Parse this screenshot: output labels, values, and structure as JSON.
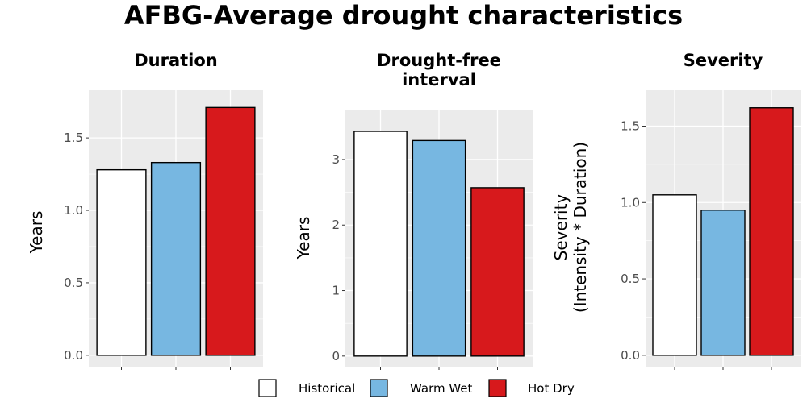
{
  "title": "AFBG-Average drought characteristics",
  "chart_data": [
    {
      "type": "bar",
      "title_lines": [
        "Duration"
      ],
      "ylabel_lines": [
        "Years"
      ],
      "categories": [
        "Historical",
        "Warm Wet",
        "Hot Dry"
      ],
      "values": [
        1.28,
        1.33,
        1.71
      ],
      "ylim": [
        0,
        1.75
      ],
      "yticks": [
        0.0,
        0.5,
        1.0,
        1.5
      ],
      "ytick_labels": [
        "0.0",
        "0.5",
        "1.0",
        "1.5"
      ],
      "grid": true
    },
    {
      "type": "bar",
      "title_lines": [
        "Drought-free",
        "interval"
      ],
      "ylabel_lines": [
        "Years"
      ],
      "categories": [
        "Historical",
        "Warm Wet",
        "Hot Dry"
      ],
      "values": [
        3.43,
        3.29,
        2.57
      ],
      "ylim": [
        0,
        3.6
      ],
      "yticks": [
        0,
        1,
        2,
        3
      ],
      "ytick_labels": [
        "0",
        "1",
        "2",
        "3"
      ],
      "grid": true
    },
    {
      "type": "bar",
      "title_lines": [
        "Severity"
      ],
      "ylabel_lines": [
        "Severity",
        "(Intensity * Duration)"
      ],
      "categories": [
        "Historical",
        "Warm Wet",
        "Hot Dry"
      ],
      "values": [
        1.05,
        0.95,
        1.62
      ],
      "ylim": [
        0,
        1.66
      ],
      "yticks": [
        0.0,
        0.5,
        1.0,
        1.5
      ],
      "ytick_labels": [
        "0.0",
        "0.5",
        "1.0",
        "1.5"
      ],
      "grid": true
    }
  ],
  "legend": {
    "position": "bottom",
    "items": [
      {
        "label": "Historical",
        "color": "#ffffff"
      },
      {
        "label": "Warm Wet",
        "color": "#77b7e1"
      },
      {
        "label": "Hot Dry",
        "color": "#d7191c"
      }
    ]
  },
  "colors": {
    "panel_background": "#ebebeb",
    "grid_line": "#ffffff",
    "bar_outline": "#000000"
  }
}
